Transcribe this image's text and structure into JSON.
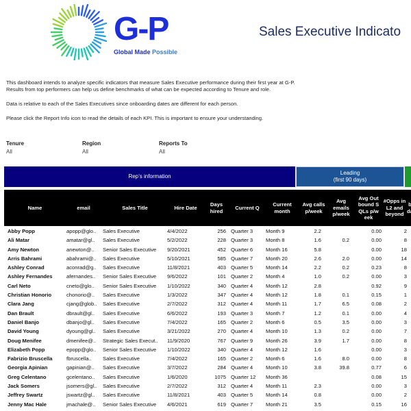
{
  "logo": {
    "mark": "G-P",
    "tagline_a": "Global Made ",
    "tagline_b": "Possible",
    "burst_colors": [
      "#2c5ee8",
      "#2aa0e0",
      "#22c7b8",
      "#46cc6a",
      "#9bd43a"
    ]
  },
  "header": {
    "title": "Sales Executive Indicato"
  },
  "intro": {
    "line1": "This dashboard intends to analyze specific indicators that measure Sales Executive performance during their first year at G-P.",
    "line2": "Results from top performers can help us define benchmarks of what can be expected according to Tenure and role.",
    "line3": "Data is relative to each of the Sales Executives since onboarding dates are different for each person.",
    "line4": "Please click the Report Info icon to read the details of each KPI. This is important to ensure your understanding."
  },
  "filters": [
    {
      "label": "Tenure",
      "value": "All"
    },
    {
      "label": "Region",
      "value": "All"
    },
    {
      "label": "Reports To",
      "value": "All"
    }
  ],
  "bands": {
    "rep": "Rep’s information",
    "leading_1": "Leading",
    "leading_2": "(first 90 days)",
    "colors": {
      "rep": "#06007e",
      "leading": "#1c5496",
      "green": "#1e9a2f"
    }
  },
  "columns": {
    "name": [
      "Name"
    ],
    "email": [
      "email"
    ],
    "title": [
      "Sales Title"
    ],
    "hire": [
      "Hire Date"
    ],
    "days": [
      "Days",
      "hired"
    ],
    "q": [
      "Current Q"
    ],
    "m": [
      "Current",
      "month"
    ],
    "calls": [
      "Avg calls",
      "p/week"
    ],
    "emails": [
      "Avg",
      "emails",
      "p/week"
    ],
    "sqls": [
      "Avg Out",
      "bound S",
      "QLs p/w",
      "eek"
    ],
    "opps": [
      "#Opps in",
      "L2 and",
      "beyond"
    ],
    "cut": [
      "",
      "b",
      "da"
    ]
  },
  "rows": [
    [
      "Abby Popp",
      "apopp@glo..",
      "Sales Executive",
      "4/4/2022",
      "256",
      "Quarter 3",
      "Month 9",
      "2.2",
      "",
      "0.00",
      "2"
    ],
    [
      "Ali Matar",
      "amatar@gl..",
      "Sales Executive",
      "5/2/2022",
      "228",
      "Quarter 3",
      "Month 8",
      "1.6",
      "0.2",
      "0.00",
      "8"
    ],
    [
      "Amy Newton",
      "anewton@..",
      "Senior Sales Executive",
      "9/20/2021",
      "452",
      "Quarter 6",
      "Month 16",
      "5.8",
      "",
      "0.00",
      "18"
    ],
    [
      "Arris Bahrami",
      "abahrami@..",
      "Sales Executive",
      "5/10/2021",
      "585",
      "Quarter 7",
      "Month 20",
      "2.6",
      "2.0",
      "0.00",
      "14"
    ],
    [
      "Ashley Conrad",
      "aconrad@g..",
      "Sales Executive",
      "11/8/2021",
      "403",
      "Quarter 5",
      "Month 14",
      "2.2",
      "0.2",
      "0.23",
      "8"
    ],
    [
      "Ashley Fernandes",
      "afernandes..",
      "Senior Sales Executive",
      "9/6/2022",
      "101",
      "Quarter 2",
      "Month 4",
      "1.0",
      "0.2",
      "0.00",
      "3"
    ],
    [
      "Carl Neto",
      "cneto@glo..",
      "Senior Sales Executive",
      "1/10/2022",
      "340",
      "Quarter 4",
      "Month 12",
      "2.8",
      "",
      "0.92",
      "9"
    ],
    [
      "Christian Honorio",
      "chonorio@..",
      "Sales Executive",
      "1/3/2022",
      "347",
      "Quarter 4",
      "Month 12",
      "1.8",
      "0.1",
      "0.15",
      "1"
    ],
    [
      "Clara Jang",
      "cjang@glob..",
      "Sales Executive",
      "2/7/2022",
      "312",
      "Quarter 4",
      "Month 11",
      "1.7",
      "6.5",
      "0.08",
      "2"
    ],
    [
      "Dan Brault",
      "dbrault@gl..",
      "Sales Executive",
      "6/6/2022",
      "193",
      "Quarter 3",
      "Month 7",
      "1.2",
      "0.1",
      "0.00",
      "4"
    ],
    [
      "Daniel Banjo",
      "dbanjo@gl..",
      "Sales Executive",
      "7/4/2022",
      "165",
      "Quarter 2",
      "Month 6",
      "0.5",
      "3.5",
      "0.00",
      "3"
    ],
    [
      "David Young",
      "dyoung@gl..",
      "Sales Executive",
      "3/21/2022",
      "270",
      "Quarter 4",
      "Month 10",
      "1.3",
      "0.2",
      "0.00",
      "7"
    ],
    [
      "Doug Menifee",
      "dmenifee@..",
      "Strategic Sales Execut..",
      "11/9/2020",
      "767",
      "Quarter 9",
      "Month 26",
      "3.9",
      "1.7",
      "0.00",
      "8"
    ],
    [
      "Elizabeth Popp",
      "epopp@glo..",
      "Senior Sales Executive",
      "1/10/2022",
      "340",
      "Quarter 4",
      "Month 12",
      "1.6",
      "",
      "0.00",
      "3"
    ],
    [
      "Fabrizio Bruscella",
      "fbruscella..",
      "Sales Executive",
      "7/4/2022",
      "165",
      "Quarter 2",
      "Month 6",
      "1.6",
      "8.0",
      "0.00",
      "8"
    ],
    [
      "Georgia Apinian",
      "gapinian@..",
      "Sales Executive",
      "3/7/2022",
      "284",
      "Quarter 4",
      "Month 10",
      "3.8",
      "39.8",
      "0.77",
      "6"
    ],
    [
      "Greg Celentano",
      "gcelentano..",
      "Sales Executive",
      "1/6/2020",
      "1075",
      "Quarter 12",
      "Month 36",
      "",
      "",
      "0.08",
      "15"
    ],
    [
      "Jack Somers",
      "jsomers@gl..",
      "Sales Executive",
      "2/7/2022",
      "312",
      "Quarter 4",
      "Month 11",
      "2.3",
      "",
      "0.00",
      "3"
    ],
    [
      "Jeffrey Swartz",
      "jswartz@gl..",
      "Sales Executive",
      "11/8/2021",
      "403",
      "Quarter 5",
      "Month 14",
      "0.8",
      "",
      "0.00",
      "2"
    ],
    [
      "Jenny Mac Hale",
      "jmachale@..",
      "Senior Sales Executive",
      "4/6/2021",
      "619",
      "Quarter 7",
      "Month 21",
      "3.5",
      "",
      "0.15",
      "16"
    ]
  ]
}
